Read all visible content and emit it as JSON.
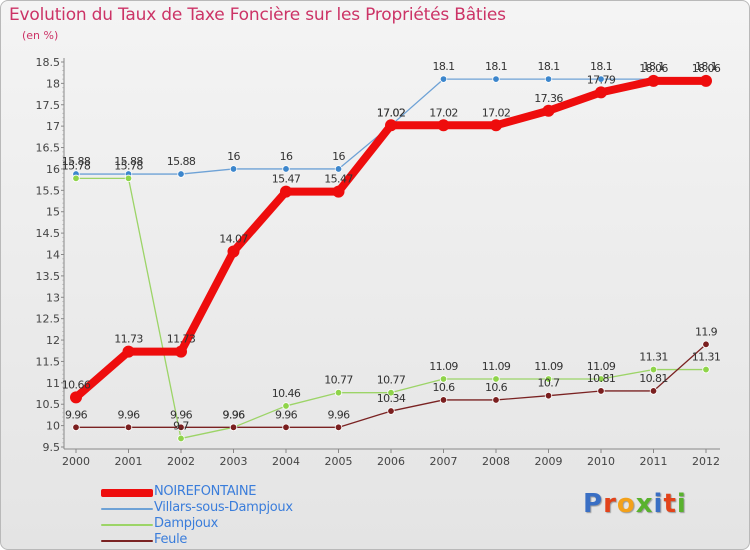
{
  "header": {
    "title": "Evolution du Taux de Taxe Foncière sur les Propriétés Bâties",
    "unit_note": "(en %)"
  },
  "brand": {
    "letters": [
      "P",
      "r",
      "o",
      "x",
      "i",
      "t",
      "i"
    ],
    "colors": [
      "#3a6fc4",
      "#e2431a",
      "#f3a11a",
      "#59b22e",
      "#3a6fc4",
      "#e2431a",
      "#59b22e"
    ]
  },
  "chart_data": {
    "type": "line",
    "title": "Evolution du Taux de Taxe Foncière sur les Propriétés Bâties",
    "ylabel": "(en %)",
    "xlabel": "",
    "categories": [
      "2000",
      "2001",
      "2002",
      "2003",
      "2004",
      "2005",
      "2006",
      "2007",
      "2008",
      "2009",
      "2010",
      "2011",
      "2012"
    ],
    "ylim": [
      9.5,
      18.5
    ],
    "yticks": [
      "9.5",
      "10",
      "10.5",
      "11",
      "11.5",
      "12",
      "12.5",
      "13",
      "13.5",
      "14",
      "14.5",
      "15",
      "15.5",
      "16",
      "16.5",
      "17",
      "17.5",
      "18",
      "18.5"
    ],
    "grid": false,
    "legend_position": "bottom-left",
    "series": [
      {
        "name": "NOIREFONTAINE",
        "color": "#ee0d0d",
        "width": 8,
        "values": [
          10.66,
          11.73,
          11.73,
          14.07,
          15.47,
          15.47,
          17.02,
          17.02,
          17.02,
          17.36,
          17.79,
          18.06,
          18.06
        ],
        "labels": [
          "10.66",
          "11.73",
          "11.73",
          "14.07",
          "15.47",
          "15.47",
          "17.02",
          "17.02",
          "17.02",
          "17.36",
          "17.79",
          "18.06",
          "18.06"
        ]
      },
      {
        "name": "Villars-sous-Dampjoux",
        "color": "#6ea2d6",
        "marker": "#3c86cc",
        "width": 1.3,
        "values": [
          15.88,
          15.88,
          15.88,
          16,
          16,
          16,
          17.02,
          18.1,
          18.1,
          18.1,
          18.1,
          18.1,
          18.1
        ],
        "labels": [
          "15.88",
          "15.88",
          "15.88",
          "16",
          "16",
          "16",
          "17.02",
          "18.1",
          "18.1",
          "18.1",
          "18.1",
          "18.1",
          "18.1"
        ]
      },
      {
        "name": "Dampjoux",
        "color": "#9cd467",
        "marker": "#8fd44a",
        "width": 1.3,
        "values": [
          15.78,
          15.78,
          9.7,
          9.96,
          10.46,
          10.77,
          10.77,
          11.09,
          11.09,
          11.09,
          11.09,
          11.31,
          11.31
        ],
        "labels": [
          "15.78",
          "15.78",
          "9.7",
          "9.96",
          "10.46",
          "10.77",
          "10.77",
          "11.09",
          "11.09",
          "11.09",
          "11.09",
          "11.31",
          "11.31"
        ]
      },
      {
        "name": "Feule",
        "color": "#7a2222",
        "marker": "#7a1f1f",
        "width": 1.3,
        "values": [
          9.96,
          9.96,
          9.96,
          9.96,
          9.96,
          9.96,
          10.34,
          10.6,
          10.6,
          10.7,
          10.81,
          10.81,
          11.9
        ],
        "labels": [
          "9.96",
          "9.96",
          "9.96",
          "9.96",
          "9.96",
          "9.96",
          "10.34",
          "10.6",
          "10.6",
          "10.7",
          "10.81",
          "10.81",
          "11.9"
        ]
      }
    ]
  }
}
